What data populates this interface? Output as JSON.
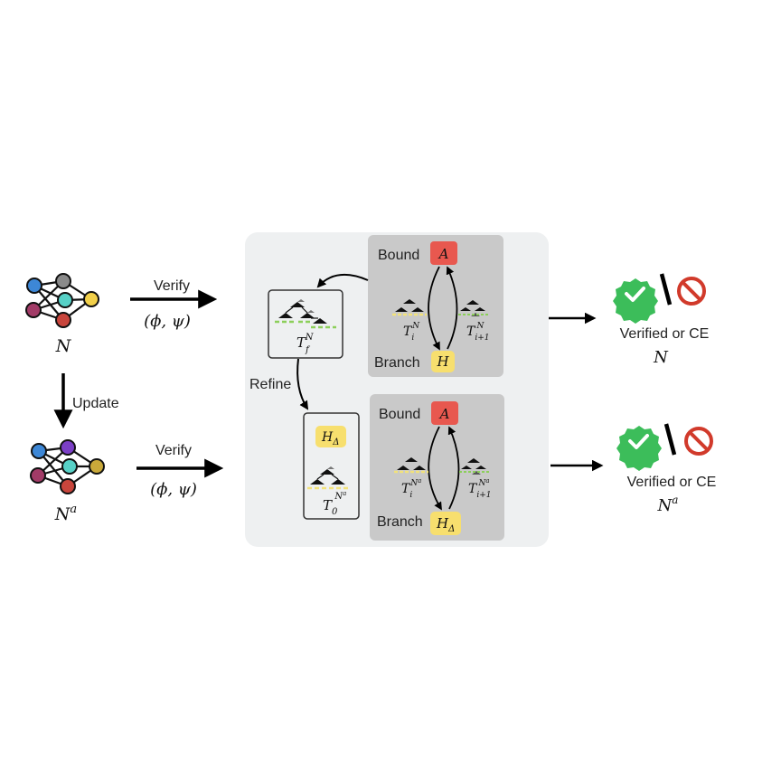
{
  "networks": {
    "original": {
      "label": "N"
    },
    "updated": {
      "label": "N",
      "label_sup": "a"
    }
  },
  "arrows": {
    "verify_top": {
      "label": "Verify",
      "spec": "(ϕ, ψ)"
    },
    "verify_bottom": {
      "label": "Verify",
      "spec": "(ϕ, ψ)"
    },
    "update": {
      "label": "Update"
    },
    "refine": {
      "label": "Refine"
    }
  },
  "panel_top": {
    "bound_label": "Bound",
    "bound_node": "A",
    "branch_label": "Branch",
    "branch_node": "H",
    "tree_left": {
      "base": "T",
      "sub": "i",
      "sup": "N"
    },
    "tree_right": {
      "base": "T",
      "sub": "i+1",
      "sup": "N"
    }
  },
  "panel_bottom": {
    "bound_label": "Bound",
    "bound_node": "A",
    "branch_label": "Branch",
    "branch_node": "H",
    "branch_node_sub": "Δ",
    "tree_left": {
      "base": "T",
      "sub": "i",
      "sup": "N",
      "sup_sup": "a"
    },
    "tree_right": {
      "base": "T",
      "sub": "i+1",
      "sup": "N",
      "sup_sup": "a"
    }
  },
  "final_tree_box": {
    "base": "T",
    "sub": "f",
    "sup": "N"
  },
  "init_tree_box": {
    "heuristic": "H",
    "heuristic_sub": "Δ",
    "base": "T",
    "sub": "0",
    "sup": "N",
    "sup_sup": "a"
  },
  "results": {
    "top": {
      "text": "Verified or CE",
      "net": "N"
    },
    "bottom": {
      "text": "Verified or CE",
      "net": "N",
      "net_sup": "a"
    }
  },
  "colors": {
    "panel_bg": "#eef0f1",
    "inner_panel": "#c9c9c9",
    "bound_node": "#e8584f",
    "branch_node": "#f7df6e",
    "check_green": "#3cbd5a",
    "stop_red": "#d13a2b",
    "node_blue": "#3d87d6",
    "node_gray": "#8a8a8a",
    "node_teal": "#57d1c7",
    "node_yellow": "#f2d04a",
    "node_plum": "#a23b67",
    "node_red": "#c8453c",
    "node_purple": "#7b3fc6",
    "node_olive": "#c9a93a"
  },
  "icons": {
    "check": "check-badge-icon",
    "stop": "prohibited-icon"
  }
}
